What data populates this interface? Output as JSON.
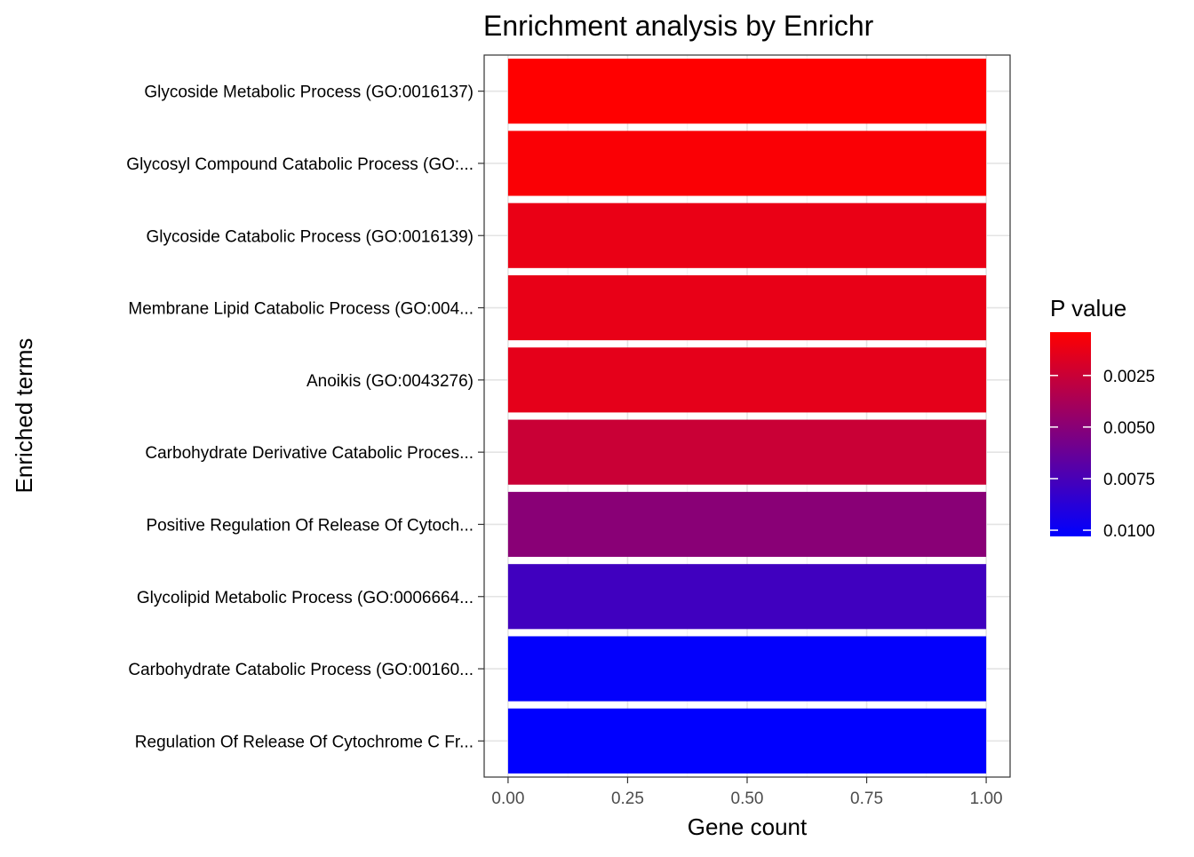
{
  "chart_data": {
    "type": "bar",
    "orientation": "horizontal",
    "title": "Enrichment analysis by Enrichr",
    "xlabel": "Gene count",
    "ylabel": "Enriched terms",
    "xlim": [
      -0.05,
      1.05
    ],
    "x_ticks": [
      "0.00",
      "0.25",
      "0.50",
      "0.75",
      "1.00"
    ],
    "grid": true,
    "categories": [
      "Glycoside Metabolic Process (GO:0016137)",
      "Glycosyl Compound Catabolic Process (GO:...",
      "Glycoside Catabolic Process (GO:0016139)",
      "Membrane Lipid Catabolic Process (GO:004...",
      "Anoikis (GO:0043276)",
      "Carbohydrate Derivative Catabolic Proces...",
      "Positive Regulation Of Release Of Cytoch...",
      "Glycolipid Metabolic Process (GO:0006664...",
      "Carbohydrate Catabolic Process (GO:00160...",
      "Regulation Of Release Of Cytochrome C Fr..."
    ],
    "values": [
      1,
      1,
      1,
      1,
      1,
      1,
      1,
      1,
      1,
      1
    ],
    "p_values": [
      0.0004,
      0.0006,
      0.0012,
      0.0013,
      0.0014,
      0.0025,
      0.005,
      0.0078,
      0.0102,
      0.0103
    ],
    "legend": {
      "title": "P value",
      "placement": "right",
      "ticks": [
        "0.0025",
        "0.0050",
        "0.0075",
        "0.0100"
      ],
      "tick_values": [
        0.0025,
        0.005,
        0.0075,
        0.01
      ],
      "range": [
        0.0004,
        0.0103
      ],
      "low_color": "#ff0000",
      "high_color": "#0000ff"
    }
  }
}
